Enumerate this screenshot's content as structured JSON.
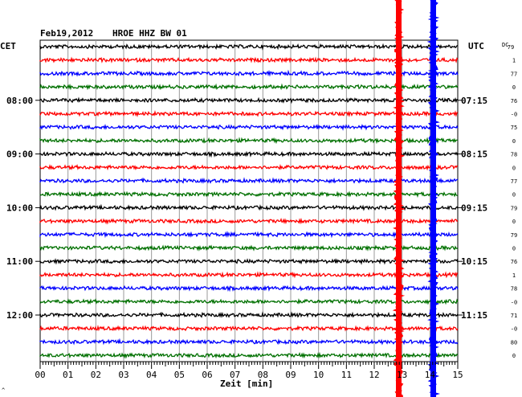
{
  "header": {
    "date": "Feb19,2012",
    "station": "HROE HHZ BW 01",
    "left_zone": "CET",
    "right_zone": "UTC",
    "dc_label": "DC"
  },
  "xlabel": "Zeit [min]",
  "corner_mark": "^",
  "chart_data": {
    "type": "line",
    "title": "HROE HHZ BW 01",
    "xlabel": "Zeit [min]",
    "xlim": [
      0,
      15
    ],
    "x_ticks": [
      "00",
      "01",
      "02",
      "03",
      "04",
      "05",
      "06",
      "07",
      "08",
      "09",
      "10",
      "11",
      "12",
      "13",
      "14",
      "15"
    ],
    "trace_count": 24,
    "trace_colors": [
      "#000000",
      "#ff0000",
      "#0000ff",
      "#007000"
    ],
    "left_time_labels": [
      {
        "trace": 4,
        "label": "08:00"
      },
      {
        "trace": 8,
        "label": "09:00"
      },
      {
        "trace": 12,
        "label": "10:00"
      },
      {
        "trace": 16,
        "label": "11:00"
      },
      {
        "trace": 20,
        "label": "12:00"
      }
    ],
    "right_time_labels": [
      {
        "trace": 4,
        "label": "07:15"
      },
      {
        "trace": 8,
        "label": "08:15"
      },
      {
        "trace": 12,
        "label": "09:15"
      },
      {
        "trace": 16,
        "label": "10:15"
      },
      {
        "trace": 20,
        "label": "11:15"
      }
    ],
    "dc_values": [
      "79",
      "1",
      "77",
      "0",
      "76",
      "-0",
      "75",
      "0",
      "78",
      "0",
      "77",
      "0",
      "79",
      "0",
      "79",
      "0",
      "76",
      "1",
      "78",
      "-0",
      "71",
      "-0",
      "80",
      "0"
    ],
    "events": [
      {
        "x_min": 12.88,
        "color": "#ff0000"
      },
      {
        "x_min": 14.12,
        "color": "#0000ff"
      }
    ]
  }
}
